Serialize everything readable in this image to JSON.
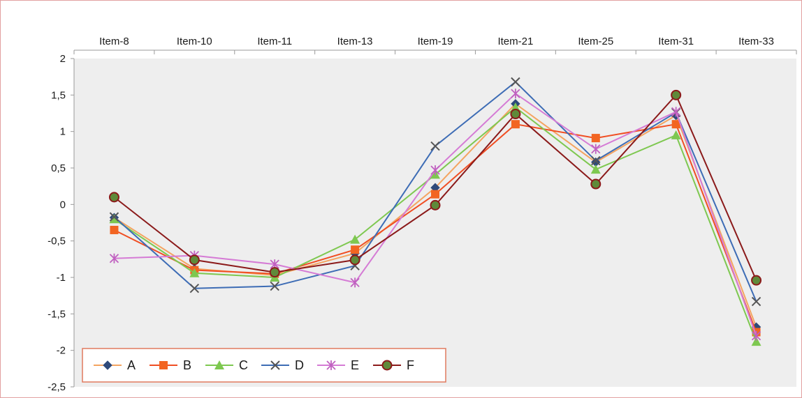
{
  "chart_data": {
    "type": "line",
    "categories": [
      "Item-8",
      "Item-10",
      "Item-11",
      "Item-13",
      "Item-19",
      "Item-21",
      "Item-25",
      "Item-31",
      "Item-33"
    ],
    "y_tick_labels": [
      "2",
      "1,5",
      "1",
      "0,5",
      "0",
      "-0,5",
      "-1",
      "-1,5",
      "-2",
      "-2,5"
    ],
    "ylim": [
      -2.5,
      2
    ],
    "x_axis_position": "top",
    "grid": false,
    "plot_background": "#eeeeee",
    "legend": {
      "placement": "bottom-left",
      "border_color": "#e07a5f"
    },
    "series": [
      {
        "name": "A",
        "color": "#f4a460",
        "marker": "diamond",
        "marker_color": "#2f4a7a",
        "values": [
          -0.18,
          -0.88,
          -0.97,
          -0.67,
          0.23,
          1.38,
          0.58,
          1.22,
          -1.68
        ]
      },
      {
        "name": "B",
        "color": "#f04e23",
        "marker": "square",
        "marker_color": "#f26522",
        "values": [
          -0.35,
          -0.9,
          -0.95,
          -0.62,
          0.14,
          1.1,
          0.91,
          1.1,
          -1.75
        ]
      },
      {
        "name": "C",
        "color": "#7ec850",
        "marker": "triangle",
        "marker_color": "#7ec850",
        "values": [
          -0.2,
          -0.94,
          -1.0,
          -0.48,
          0.41,
          1.33,
          0.48,
          0.95,
          -1.88
        ]
      },
      {
        "name": "D",
        "color": "#3d6cb5",
        "marker": "x",
        "marker_color": "#555555",
        "values": [
          -0.17,
          -1.15,
          -1.12,
          -0.84,
          0.8,
          1.68,
          0.6,
          1.26,
          -1.33
        ]
      },
      {
        "name": "E",
        "color": "#d57bd5",
        "marker": "asterisk",
        "marker_color": "#c060c0",
        "values": [
          -0.74,
          -0.7,
          -0.82,
          -1.07,
          0.47,
          1.52,
          0.76,
          1.27,
          -1.8
        ]
      },
      {
        "name": "F",
        "color": "#8b1a1a",
        "marker": "circle",
        "marker_color": "#5f8a3a",
        "values": [
          0.1,
          -0.76,
          -0.93,
          -0.76,
          -0.01,
          1.24,
          0.28,
          1.5,
          -1.04
        ]
      }
    ]
  }
}
